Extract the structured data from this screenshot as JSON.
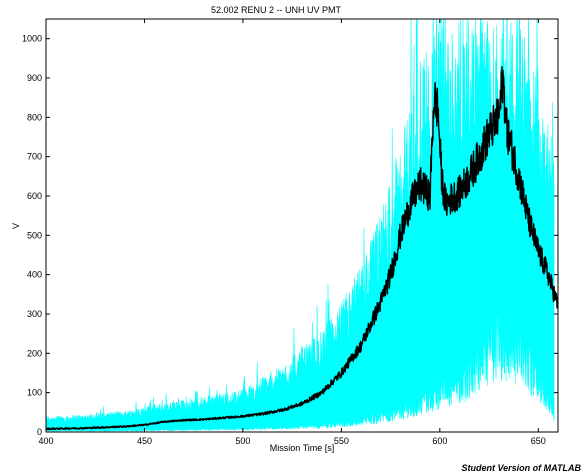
{
  "chart_data": {
    "type": "line",
    "title": "52.002 RENU 2 -- UNH UV PMT",
    "xlabel": "Mission Time [s]",
    "ylabel": "V",
    "xlim": [
      400,
      660
    ],
    "ylim": [
      0,
      1050
    ],
    "xticks": [
      400,
      450,
      500,
      550,
      600,
      650
    ],
    "yticks": [
      0,
      100,
      200,
      300,
      400,
      500,
      600,
      700,
      800,
      900,
      1000
    ],
    "grid": false,
    "watermark": "Student Version of MATLAB",
    "series": [
      {
        "color": "#00ffff",
        "style": "envelope",
        "x": [
          400,
          420,
          440,
          460,
          480,
          500,
          520,
          540,
          550,
          560,
          570,
          580,
          590,
          600,
          610,
          620,
          630,
          640,
          650,
          658
        ],
        "upper": [
          40,
          45,
          55,
          75,
          90,
          110,
          170,
          260,
          330,
          430,
          560,
          740,
          950,
          1050,
          1050,
          1050,
          1050,
          1050,
          950,
          730
        ],
        "lower": [
          5,
          5,
          5,
          8,
          10,
          12,
          16,
          22,
          28,
          40,
          55,
          75,
          100,
          130,
          170,
          240,
          330,
          300,
          190,
          60
        ]
      },
      {
        "color": "#000000",
        "style": "line",
        "x": [
          400,
          420,
          440,
          450,
          460,
          470,
          480,
          500,
          510,
          520,
          530,
          540,
          550,
          560,
          570,
          575,
          580,
          585,
          590,
          595,
          597,
          599,
          601,
          603,
          605,
          610,
          615,
          620,
          625,
          630,
          632,
          634,
          640,
          645,
          650,
          655,
          660
        ],
        "y": [
          8,
          10,
          14,
          18,
          26,
          30,
          32,
          40,
          46,
          56,
          72,
          100,
          150,
          220,
          330,
          400,
          500,
          580,
          630,
          600,
          850,
          820,
          640,
          580,
          590,
          610,
          650,
          700,
          760,
          800,
          900,
          770,
          650,
          540,
          460,
          400,
          320
        ]
      }
    ]
  }
}
